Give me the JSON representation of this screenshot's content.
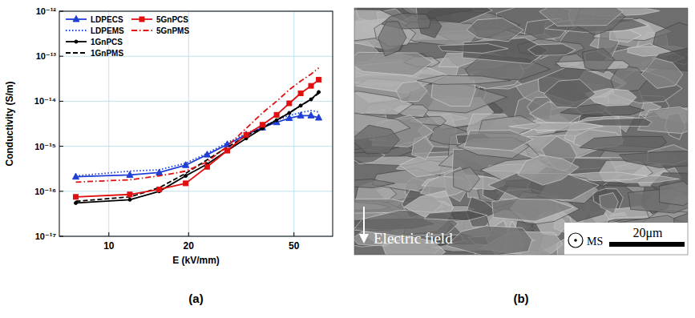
{
  "chart_data": {
    "type": "line",
    "xlabel": "E (kV/mm)",
    "ylabel": "Conductivity (S/m)",
    "log": true,
    "grid": true,
    "legend": "upper left",
    "xlim": [
      6.5,
      70
    ],
    "xticks": [
      10,
      20,
      50
    ],
    "ylim": [
      1e-17,
      1e-12
    ],
    "yticks": [
      {
        "value": 1e-17,
        "label": "10⁻¹⁷"
      },
      {
        "value": 1e-16,
        "label": "10⁻¹⁶"
      },
      {
        "value": 1e-15,
        "label": "10⁻¹⁵"
      },
      {
        "value": 1e-14,
        "label": "10⁻¹⁴"
      },
      {
        "value": 1e-13,
        "label": "10⁻¹³"
      },
      {
        "value": 1e-12,
        "label": "10⁻¹²"
      }
    ],
    "x": [
      7.5,
      12,
      15.5,
      19.5,
      23.5,
      28,
      33,
      38,
      43,
      48,
      53,
      58,
      62
    ],
    "series": [
      {
        "name": "LDPECS",
        "color": "#1f3fd6",
        "marker": "triangle",
        "line_style": "solid",
        "values": [
          2.1e-16,
          2.3e-16,
          2.6e-16,
          3.8e-16,
          6.5e-16,
          1.1e-15,
          1.8e-15,
          2.6e-15,
          3.4e-15,
          4.2e-15,
          4.8e-15,
          4.8e-15,
          4.3e-15
        ]
      },
      {
        "name": "LDPEMS",
        "color": "#1f3fd6",
        "marker": "none",
        "line_style": "dotted",
        "values": [
          2.2e-16,
          2.8e-16,
          3e-16,
          4.2e-16,
          7e-16,
          1.2e-15,
          1.9e-15,
          2.8e-15,
          3.8e-15,
          4.8e-15,
          5.6e-15,
          6.2e-15,
          5.8e-15
        ]
      },
      {
        "name": "1GnPCS",
        "color": "#000000",
        "marker": "circle",
        "line_style": "solid",
        "values": [
          5.5e-17,
          6.5e-17,
          1e-16,
          2.2e-16,
          4e-16,
          8e-16,
          1.5e-15,
          2.5e-15,
          3.8e-15,
          5.5e-15,
          8e-15,
          1.1e-14,
          1.6e-14
        ]
      },
      {
        "name": "1GnPMS",
        "color": "#000000",
        "marker": "none",
        "line_style": "dashed",
        "values": [
          6e-17,
          7.5e-17,
          1.2e-16,
          2.5e-16,
          5e-16,
          9.5e-16,
          1.7e-15,
          2.6e-15,
          3.8e-15,
          5.5e-15,
          8e-15,
          1.1e-14,
          1.5e-14
        ]
      },
      {
        "name": "5GnPCS",
        "color": "#e01010",
        "marker": "square",
        "line_style": "solid",
        "values": [
          7.5e-17,
          8.5e-17,
          1.1e-16,
          1.5e-16,
          3.5e-16,
          8e-16,
          1.8e-15,
          3e-15,
          5e-15,
          9e-15,
          1.5e-14,
          2.2e-14,
          3e-14
        ]
      },
      {
        "name": "5GnPMS",
        "color": "#e01010",
        "marker": "none",
        "line_style": "dashdot",
        "values": [
          1.6e-16,
          1.8e-16,
          2.2e-16,
          2.8e-16,
          4.5e-16,
          1e-15,
          2.5e-15,
          5.5e-15,
          1e-14,
          1.8e-14,
          2.8e-14,
          4e-14,
          5.5e-14
        ]
      }
    ]
  },
  "panel_labels": [
    "(a)",
    "(b)"
  ],
  "micrograph": {
    "field_label": "Electric field",
    "direction_label": "MS",
    "scale_label": "20μm"
  }
}
